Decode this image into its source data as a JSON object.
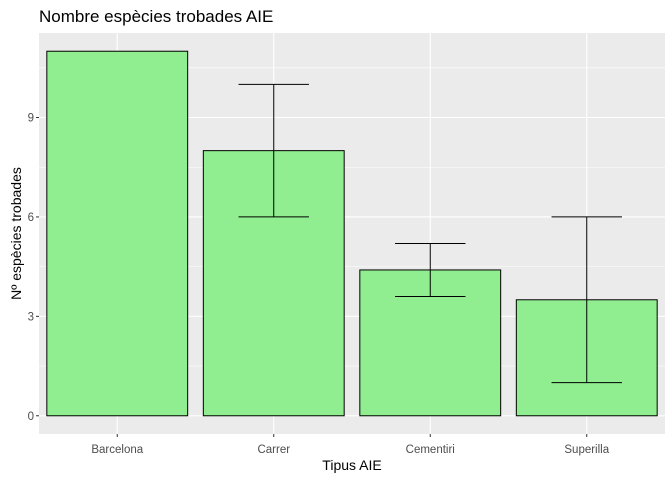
{
  "chart_data": {
    "type": "bar",
    "title": "Nombre espècies trobades AIE",
    "xlabel": "Tipus AIE",
    "ylabel": "Nº espècies trobades",
    "categories": [
      "Barcelona",
      "Carrer",
      "Cementiri",
      "Superilla"
    ],
    "values": [
      11,
      8,
      4.4,
      3.5
    ],
    "error_low": [
      null,
      6,
      3.6,
      1
    ],
    "error_high": [
      null,
      10,
      5.2,
      6
    ],
    "ylim": [
      -0.55,
      11.55
    ],
    "yticks": [
      0,
      3,
      6,
      9
    ],
    "ytick_labels": [
      "0",
      "3",
      "6",
      "9"
    ],
    "grid": true,
    "colors": {
      "bar_fill": "#90EE90",
      "bar_stroke": "#000000",
      "panel_bg": "#EBEBEB",
      "grid_major": "#FFFFFF",
      "tick_text": "#4D4D4D"
    }
  }
}
